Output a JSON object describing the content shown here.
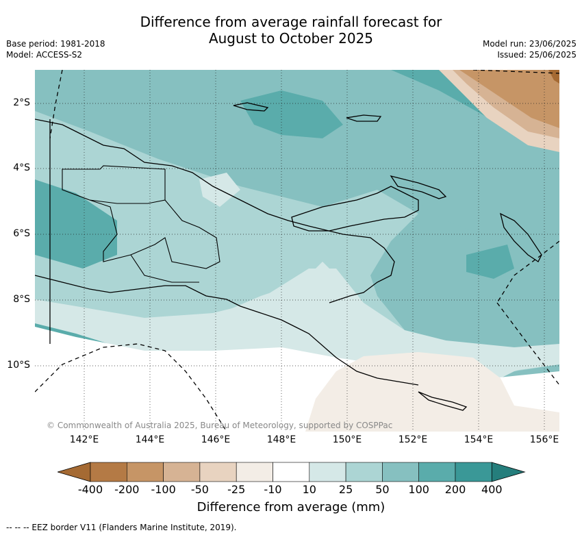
{
  "title_line1": "Difference from average rainfall forecast for",
  "title_line2": "August to October 2025",
  "base_period": "Base period: 1981-2018",
  "model": "Model: ACCESS-S2",
  "model_run": "Model run: 23/06/2025",
  "issued": "Issued: 25/06/2025",
  "credit": "© Commonwealth of Australia 2025, Bureau of Meteorology, supported by COSPPac",
  "eez_note": "--  --  -- EEZ border V11 (Flanders Marine Institute, 2019).",
  "map": {
    "x_ticks": [
      "142°E",
      "144°E",
      "146°E",
      "148°E",
      "150°E",
      "152°E",
      "154°E",
      "156°E"
    ],
    "y_ticks": [
      "2°S",
      "4°S",
      "6°S",
      "8°S",
      "10°S"
    ]
  },
  "colorbar": {
    "title": "Difference from average (mm)",
    "labels": [
      "-400",
      "-200",
      "-100",
      "-50",
      "-25",
      "-10",
      "10",
      "25",
      "50",
      "100",
      "200",
      "400"
    ],
    "colors": [
      "#a56a33",
      "#b47a45",
      "#c69566",
      "#d6b394",
      "#e8d3c0",
      "#f3ede6",
      "#ffffff",
      "#d5e8e7",
      "#acd5d4",
      "#86c0c0",
      "#5aacab",
      "#3a9897",
      "#257e7c"
    ]
  }
}
